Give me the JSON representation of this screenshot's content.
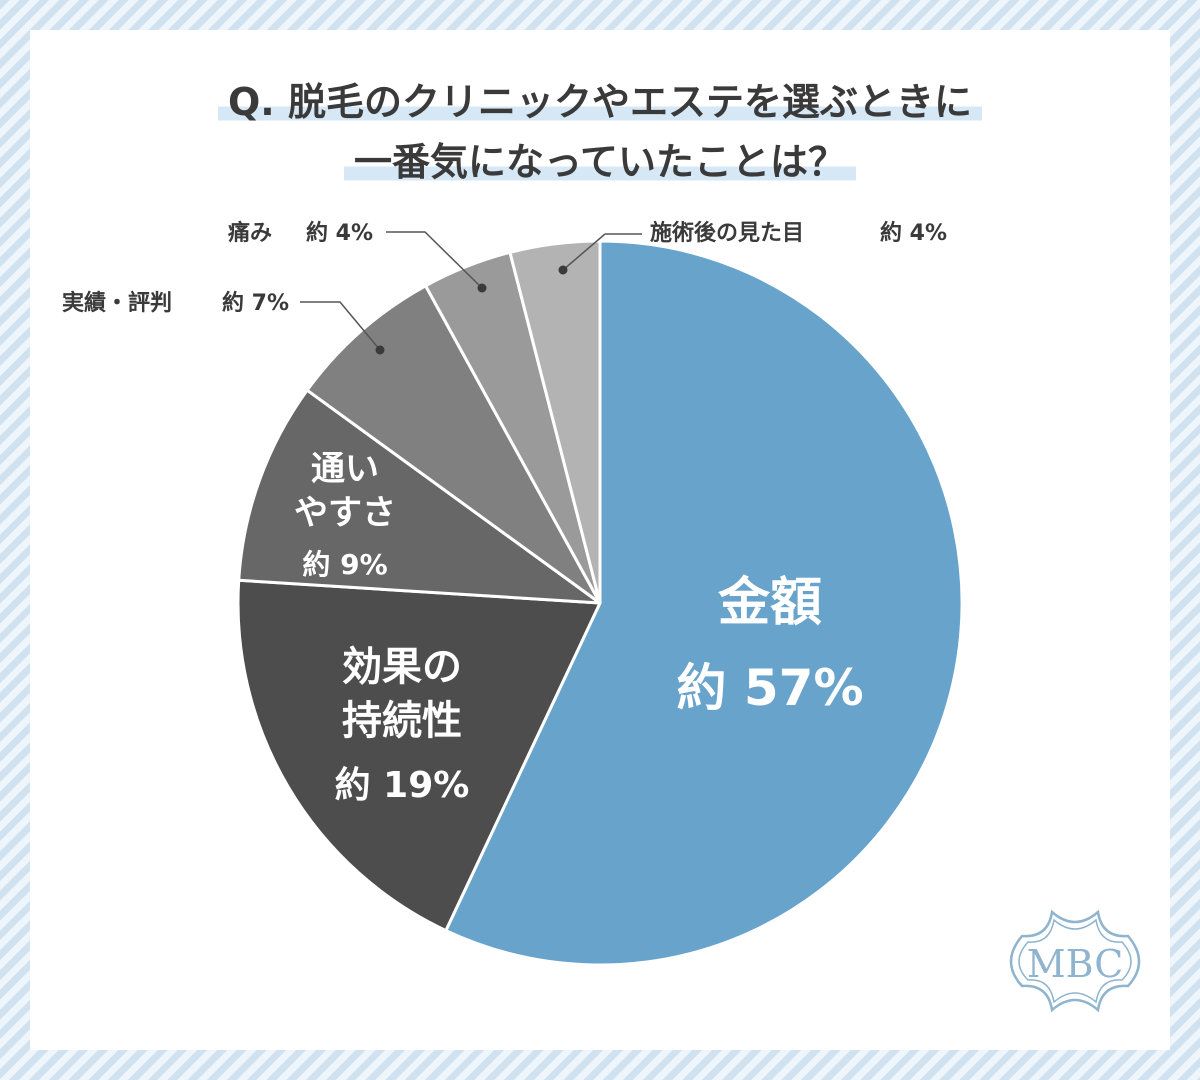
{
  "title": {
    "line1": "Q. 脱毛のクリニックやエステを選ぶときに",
    "line2": "一番気になっていたことは？"
  },
  "colors": {
    "background": "#dce9f4",
    "card": "#ffffff",
    "title_highlight": "#d6e8f5",
    "slice_border": "#ffffff",
    "label_dark": "#3a3a3a",
    "logo": "#8fb4cf"
  },
  "chart_data": {
    "type": "pie",
    "title": "Q. 脱毛のクリニックやエステを選ぶときに一番気になっていたことは？",
    "start": "12 o'clock, clockwise",
    "unit": "%",
    "slices": [
      {
        "label": "金額",
        "value": 57,
        "value_label": "約 57%",
        "color": "#68a3cb",
        "text_color": "#ffffff"
      },
      {
        "label": "効果の持続性",
        "value": 19,
        "value_label": "約 19%",
        "color": "#4d4d4d",
        "text_color": "#ffffff"
      },
      {
        "label": "通いやすさ",
        "value": 9,
        "value_label": "約 9%",
        "color": "#676767",
        "text_color": "#ffffff"
      },
      {
        "label": "実績・評判",
        "value": 7,
        "value_label": "約 7%",
        "color": "#808080",
        "text_color": "#3a3a3a"
      },
      {
        "label": "痛み",
        "value": 4,
        "value_label": "約 4%",
        "color": "#9a9a9a",
        "text_color": "#3a3a3a"
      },
      {
        "label": "施術後の見た目",
        "value": 4,
        "value_label": "約 4%",
        "color": "#b3b3b3",
        "text_color": "#3a3a3a"
      }
    ]
  },
  "labels": {
    "kingaku": {
      "line1": "金額",
      "value": "約 57%"
    },
    "koka": {
      "line1": "効果の",
      "line2": "持続性",
      "value": "約 19%"
    },
    "kayoi": {
      "line1": "通い",
      "line2": "やすさ",
      "value": "約 9%"
    },
    "jisseki": {
      "text": "実績・評判",
      "value": "約 7%"
    },
    "itami": {
      "text": "痛み",
      "value": "約 4%"
    },
    "mitame": {
      "text": "施術後の見た目",
      "value": "約 4%"
    }
  },
  "logo": {
    "text": "MBC"
  }
}
